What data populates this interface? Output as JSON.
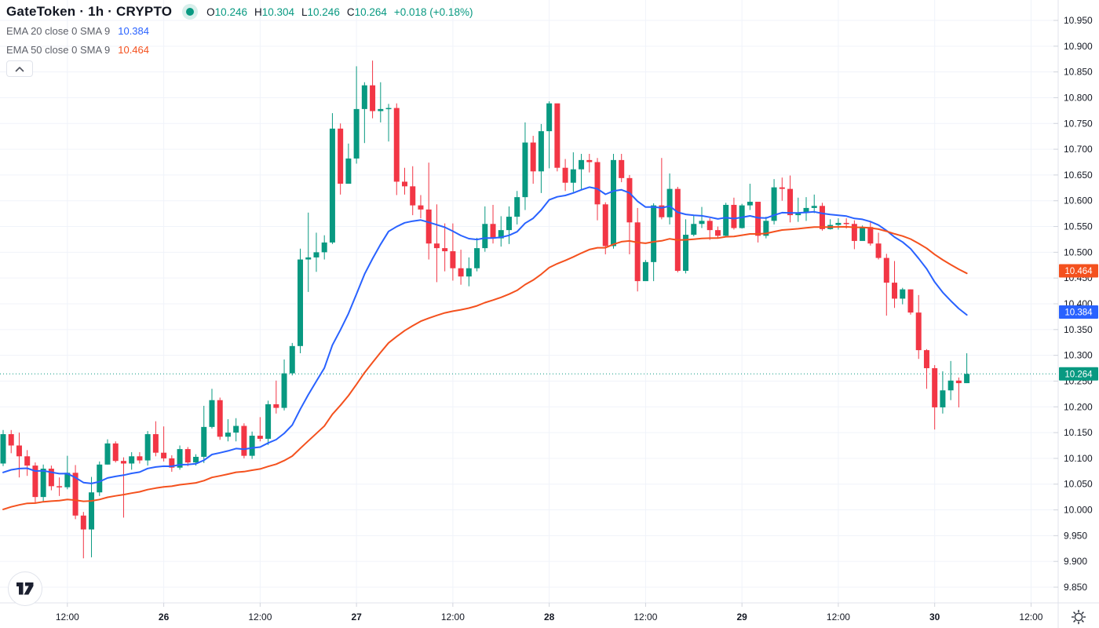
{
  "header": {
    "title": "GateToken · 1h · CRYPTO",
    "status_dot_icon": "market-status-dot",
    "ohlc": {
      "o_label": "O",
      "o": "10.246",
      "h_label": "H",
      "h": "10.304",
      "l_label": "L",
      "l": "10.246",
      "c_label": "C",
      "c": "10.264",
      "change": "+0.018 (+0.18%)"
    }
  },
  "indicators": [
    {
      "label": "EMA 20 close 0 SMA 9",
      "value": "10.384",
      "color": "#2962ff"
    },
    {
      "label": "EMA 50 close 0 SMA 9",
      "value": "10.464",
      "color": "#f4511e"
    }
  ],
  "colors": {
    "up": "#089981",
    "down": "#f23645",
    "ema20": "#2962ff",
    "ema50": "#f4511e",
    "last_price_line": "#089981",
    "text": "#131722",
    "muted": "#787b86",
    "grid": "#f0f3fa",
    "axis_border": "#e0e3eb",
    "tick": "#d1d4dc",
    "tag_text": "#ffffff",
    "icon": "#363a45"
  },
  "chart_data": {
    "type": "candlestick",
    "title": "GateToken 1h CRYPTO",
    "open_rule": "each candle opens at previous candle close",
    "open_first": 10.09,
    "candles_format": [
      "close",
      "high",
      "low"
    ],
    "candles": [
      [
        10.147,
        10.155,
        10.085
      ],
      [
        10.125,
        10.155,
        10.11
      ],
      [
        10.104,
        10.15,
        10.063
      ],
      [
        10.086,
        10.116,
        10.066
      ],
      [
        10.025,
        10.092,
        10.012
      ],
      [
        10.08,
        10.088,
        10.015
      ],
      [
        10.046,
        10.086,
        10.038
      ],
      [
        10.044,
        10.063,
        10.027
      ],
      [
        10.072,
        10.105,
        10.04
      ],
      [
        9.989,
        10.087,
        9.982
      ],
      [
        9.962,
        9.996,
        9.906
      ],
      [
        10.034,
        10.064,
        9.908
      ],
      [
        10.088,
        10.094,
        10.027
      ],
      [
        10.129,
        10.137,
        10.088
      ],
      [
        10.095,
        10.133,
        10.092
      ],
      [
        10.09,
        10.102,
        9.985
      ],
      [
        10.104,
        10.112,
        10.078
      ],
      [
        10.096,
        10.112,
        10.09
      ],
      [
        10.147,
        10.153,
        10.086
      ],
      [
        10.111,
        10.172,
        10.104
      ],
      [
        10.1,
        10.162,
        10.094
      ],
      [
        10.082,
        10.106,
        10.074
      ],
      [
        10.118,
        10.125,
        10.078
      ],
      [
        10.092,
        10.122,
        10.085
      ],
      [
        10.103,
        10.108,
        10.086
      ],
      [
        10.161,
        10.202,
        10.091
      ],
      [
        10.213,
        10.235,
        10.158
      ],
      [
        10.142,
        10.218,
        10.136
      ],
      [
        10.15,
        10.176,
        10.133
      ],
      [
        10.163,
        10.178,
        10.133
      ],
      [
        10.105,
        10.168,
        10.1
      ],
      [
        10.144,
        10.152,
        10.099
      ],
      [
        10.138,
        10.18,
        10.133
      ],
      [
        10.205,
        10.212,
        10.126
      ],
      [
        10.198,
        10.251,
        10.187
      ],
      [
        10.265,
        10.292,
        10.193
      ],
      [
        10.318,
        10.324,
        10.261
      ],
      [
        10.486,
        10.507,
        10.304
      ],
      [
        10.49,
        10.577,
        10.423
      ],
      [
        10.5,
        10.538,
        10.462
      ],
      [
        10.519,
        10.533,
        10.486
      ],
      [
        10.74,
        10.77,
        10.516
      ],
      [
        10.633,
        10.75,
        10.612
      ],
      [
        10.682,
        10.711,
        10.655
      ],
      [
        10.778,
        10.861,
        10.672
      ],
      [
        10.824,
        10.83,
        10.712
      ],
      [
        10.774,
        10.872,
        10.76
      ],
      [
        10.778,
        10.83,
        10.752
      ],
      [
        10.78,
        10.788,
        10.715
      ],
      [
        10.637,
        10.789,
        10.611
      ],
      [
        10.628,
        10.664,
        10.612
      ],
      [
        10.591,
        10.667,
        10.572
      ],
      [
        10.583,
        10.611,
        10.566
      ],
      [
        10.517,
        10.674,
        10.486
      ],
      [
        10.508,
        10.593,
        10.442
      ],
      [
        10.502,
        10.556,
        10.463
      ],
      [
        10.469,
        10.556,
        10.445
      ],
      [
        10.453,
        10.505,
        10.437
      ],
      [
        10.469,
        10.49,
        10.434
      ],
      [
        10.508,
        10.528,
        10.463
      ],
      [
        10.555,
        10.589,
        10.501
      ],
      [
        10.527,
        10.592,
        10.517
      ],
      [
        10.543,
        10.57,
        10.511
      ],
      [
        10.569,
        10.589,
        10.516
      ],
      [
        10.607,
        10.619,
        10.554
      ],
      [
        10.713,
        10.752,
        10.582
      ],
      [
        10.657,
        10.726,
        10.633
      ],
      [
        10.735,
        10.749,
        10.615
      ],
      [
        10.789,
        10.793,
        10.663
      ],
      [
        10.664,
        10.786,
        10.657
      ],
      [
        10.635,
        10.681,
        10.619
      ],
      [
        10.661,
        10.694,
        10.617
      ],
      [
        10.679,
        10.691,
        10.621
      ],
      [
        10.675,
        10.691,
        10.655
      ],
      [
        10.593,
        10.683,
        10.562
      ],
      [
        10.512,
        10.597,
        10.496
      ],
      [
        10.679,
        10.691,
        10.507
      ],
      [
        10.644,
        10.691,
        10.636
      ],
      [
        10.558,
        10.65,
        10.496
      ],
      [
        10.444,
        10.586,
        10.424
      ],
      [
        10.481,
        10.485,
        10.445
      ],
      [
        10.591,
        10.595,
        10.444
      ],
      [
        10.568,
        10.683,
        10.564
      ],
      [
        10.623,
        10.653,
        10.554
      ],
      [
        10.464,
        10.627,
        10.461
      ],
      [
        10.534,
        10.564,
        10.459
      ],
      [
        10.555,
        10.571,
        10.531
      ],
      [
        10.561,
        10.588,
        10.547
      ],
      [
        10.543,
        10.566,
        10.524
      ],
      [
        10.532,
        10.55,
        10.527
      ],
      [
        10.592,
        10.596,
        10.531
      ],
      [
        10.547,
        10.606,
        10.544
      ],
      [
        10.591,
        10.594,
        10.546
      ],
      [
        10.598,
        10.633,
        10.582
      ],
      [
        10.532,
        10.591,
        10.519
      ],
      [
        10.561,
        10.569,
        10.527
      ],
      [
        10.626,
        10.642,
        10.554
      ],
      [
        10.623,
        10.645,
        10.6
      ],
      [
        10.572,
        10.649,
        10.558
      ],
      [
        10.577,
        10.606,
        10.559
      ],
      [
        10.586,
        10.607,
        10.561
      ],
      [
        10.59,
        10.612,
        10.576
      ],
      [
        10.545,
        10.596,
        10.542
      ],
      [
        10.553,
        10.564,
        10.544
      ],
      [
        10.557,
        10.566,
        10.544
      ],
      [
        10.555,
        10.566,
        10.546
      ],
      [
        10.522,
        10.562,
        10.506
      ],
      [
        10.549,
        10.552,
        10.526
      ],
      [
        10.517,
        10.561,
        10.513
      ],
      [
        10.489,
        10.538,
        10.486
      ],
      [
        10.441,
        10.497,
        10.377
      ],
      [
        10.41,
        10.483,
        10.392
      ],
      [
        10.428,
        10.431,
        10.399
      ],
      [
        10.383,
        10.428,
        10.379
      ],
      [
        10.31,
        10.417,
        10.293
      ],
      [
        10.275,
        10.312,
        10.235
      ],
      [
        10.199,
        10.281,
        10.156
      ],
      [
        10.232,
        10.269,
        10.187
      ],
      [
        10.251,
        10.289,
        10.213
      ],
      [
        10.246,
        10.257,
        10.199
      ],
      [
        10.264,
        10.304,
        10.246
      ]
    ],
    "y_axis": {
      "min": 9.85,
      "max": 10.95,
      "step": 0.05,
      "label_format": "3 decimals"
    },
    "x_axis": {
      "ticks": [
        {
          "i": 8,
          "label": "12:00",
          "bold": false
        },
        {
          "i": 20,
          "label": "26",
          "bold": true
        },
        {
          "i": 32,
          "label": "12:00",
          "bold": false
        },
        {
          "i": 44,
          "label": "27",
          "bold": true
        },
        {
          "i": 56,
          "label": "12:00",
          "bold": false
        },
        {
          "i": 68,
          "label": "28",
          "bold": true
        },
        {
          "i": 80,
          "label": "12:00",
          "bold": false
        },
        {
          "i": 92,
          "label": "29",
          "bold": true
        },
        {
          "i": 104,
          "label": "12:00",
          "bold": false
        },
        {
          "i": 116,
          "label": "30",
          "bold": true
        },
        {
          "i": 128,
          "label": "12:00",
          "bold": false
        }
      ]
    },
    "last_price": 10.264,
    "price_line": {
      "price": 10.264,
      "style": "dotted",
      "color": "#089981"
    },
    "emas": [
      {
        "name": "EMA 20",
        "period": 20,
        "seed": 10.065,
        "color": "#2962ff",
        "end_label": "10.384"
      },
      {
        "name": "EMA 50",
        "period": 50,
        "seed": 9.995,
        "color": "#f4511e",
        "end_label": "10.464"
      }
    ],
    "price_tags": [
      {
        "label": "10.464",
        "price": 10.464,
        "color": "#f4511e"
      },
      {
        "label": "10.384",
        "price": 10.384,
        "color": "#2962ff"
      },
      {
        "label": "10.264",
        "price": 10.264,
        "color": "#089981"
      }
    ]
  }
}
